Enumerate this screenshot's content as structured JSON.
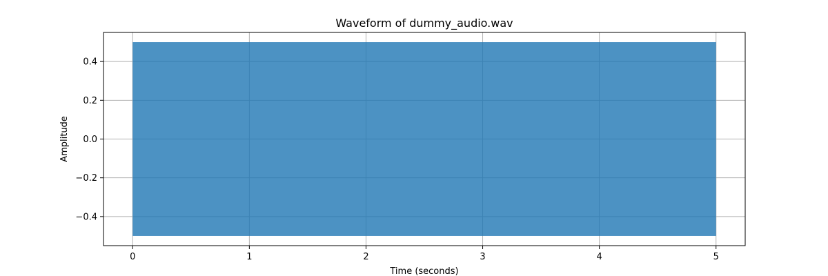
{
  "chart_data": {
    "type": "area",
    "title": "Waveform of dummy_audio.wav",
    "xlabel": "Time (seconds)",
    "ylabel": "Amplitude",
    "xlim": [
      -0.25,
      5.25
    ],
    "ylim": [
      -0.55,
      0.55
    ],
    "xticks": [
      0,
      1,
      2,
      3,
      4,
      5
    ],
    "xtick_labels": [
      "0",
      "1",
      "2",
      "3",
      "4",
      "5"
    ],
    "yticks": [
      -0.4,
      -0.2,
      0.0,
      0.2,
      0.4
    ],
    "ytick_labels": [
      "−0.4",
      "−0.2",
      "0.0",
      "0.2",
      "0.4"
    ],
    "grid": true,
    "series": [
      {
        "x": [
          0,
          5
        ],
        "y_min": -0.5,
        "y_max": 0.5,
        "color": "#1f77b4",
        "alpha": 0.8
      }
    ]
  }
}
